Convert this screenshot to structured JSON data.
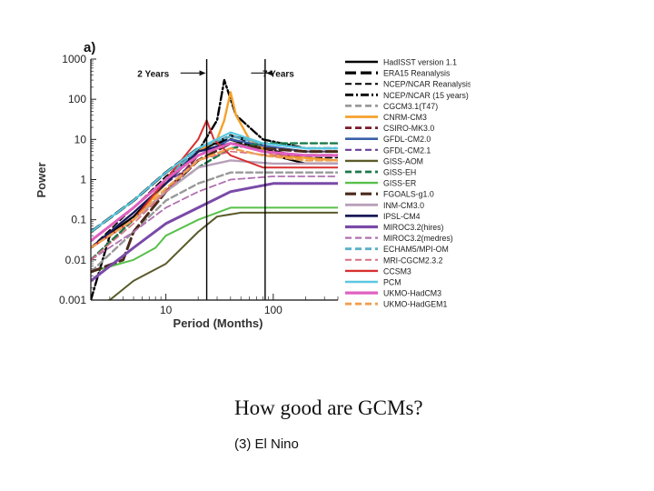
{
  "slide": {
    "title": "How good are GCMs?",
    "subtitle": "(3) El Nino"
  },
  "chart_data": {
    "type": "line",
    "panel_label": "a)",
    "xlabel": "Period (Months)",
    "ylabel": "Power",
    "x_scale": "log",
    "y_scale": "log",
    "xlim": [
      2,
      400
    ],
    "ylim": [
      0.001,
      1000
    ],
    "x_ticks": [
      10,
      100
    ],
    "y_ticks": [
      1000,
      100,
      10,
      1,
      0.1,
      0.01,
      0.001
    ],
    "y_tick_labels": [
      "1000",
      "100",
      "10",
      "1",
      "0.1",
      "0.01",
      "0.001"
    ],
    "x_tick_labels": [
      "10",
      "100"
    ],
    "grid": false,
    "legend_position": "right",
    "vlines": [
      24,
      84
    ],
    "annotations": [
      {
        "text": "2 Years",
        "x_from": 3.5,
        "x_to": 24,
        "y": 450,
        "direction": "right"
      },
      {
        "text": "7 Years",
        "x_from": 84,
        "x_to": 200,
        "y": 450,
        "direction": "left"
      }
    ],
    "series": [
      {
        "name": "HadISST version 1.1",
        "color": "#000000",
        "dash": "solid",
        "width": 2.2,
        "points": [
          [
            2,
            0.02
          ],
          [
            5,
            0.12
          ],
          [
            10,
            0.8
          ],
          [
            20,
            5
          ],
          [
            40,
            12
          ],
          [
            60,
            10
          ],
          [
            100,
            4
          ],
          [
            200,
            2.5
          ],
          [
            400,
            2.5
          ]
        ]
      },
      {
        "name": "ERA15 Reanalysis",
        "color": "#000000",
        "dash": "longdash",
        "width": 3,
        "points": [
          [
            2,
            0.05
          ],
          [
            5,
            0.3
          ],
          [
            10,
            1.5
          ],
          [
            20,
            6
          ],
          [
            40,
            10
          ],
          [
            80,
            6
          ],
          [
            150,
            4
          ],
          [
            400,
            4
          ]
        ]
      },
      {
        "name": "NCEP/NCAR Reanalysis",
        "color": "#000000",
        "dash": "dash",
        "width": 1.6,
        "points": [
          [
            2,
            0.02
          ],
          [
            5,
            0.2
          ],
          [
            10,
            1.2
          ],
          [
            20,
            5
          ],
          [
            40,
            13
          ],
          [
            80,
            6
          ],
          [
            150,
            3.5
          ],
          [
            400,
            3.5
          ]
        ]
      },
      {
        "name": "NCEP/NCAR (15 years)",
        "color": "#000000",
        "dash": "dashdot",
        "width": 2.4,
        "points": [
          [
            2,
            0.001
          ],
          [
            3,
            0.04
          ],
          [
            5,
            0.1
          ],
          [
            10,
            1
          ],
          [
            20,
            5
          ],
          [
            30,
            30
          ],
          [
            35,
            300
          ],
          [
            45,
            40
          ],
          [
            80,
            10
          ],
          [
            200,
            6
          ],
          [
            400,
            6
          ]
        ]
      },
      {
        "name": "CGCM3.1(T47)",
        "color": "#999999",
        "dash": "dash",
        "width": 2.4,
        "points": [
          [
            2,
            0.005
          ],
          [
            5,
            0.05
          ],
          [
            10,
            0.3
          ],
          [
            20,
            0.8
          ],
          [
            40,
            1.5
          ],
          [
            100,
            1.5
          ],
          [
            400,
            1.5
          ]
        ]
      },
      {
        "name": "CNRM-CM3",
        "color": "#f4a12c",
        "dash": "solid",
        "width": 2.4,
        "points": [
          [
            2,
            0.02
          ],
          [
            5,
            0.1
          ],
          [
            10,
            0.8
          ],
          [
            20,
            5
          ],
          [
            30,
            10
          ],
          [
            35,
            30
          ],
          [
            40,
            150
          ],
          [
            45,
            40
          ],
          [
            60,
            10
          ],
          [
            100,
            4
          ],
          [
            400,
            3
          ]
        ]
      },
      {
        "name": "CSIRO-MK3.0",
        "color": "#7a1a2a",
        "dash": "dash",
        "width": 2.4,
        "points": [
          [
            2,
            0.01
          ],
          [
            5,
            0.1
          ],
          [
            10,
            0.5
          ],
          [
            20,
            4
          ],
          [
            40,
            8
          ],
          [
            80,
            5
          ],
          [
            150,
            4
          ],
          [
            400,
            4
          ]
        ]
      },
      {
        "name": "GFDL-CM2.0",
        "color": "#3a5fa8",
        "dash": "solid",
        "width": 2.2,
        "points": [
          [
            2,
            0.03
          ],
          [
            5,
            0.2
          ],
          [
            10,
            1
          ],
          [
            20,
            4
          ],
          [
            40,
            10
          ],
          [
            80,
            7
          ],
          [
            200,
            5
          ],
          [
            400,
            5
          ]
        ]
      },
      {
        "name": "GFDL-CM2.1",
        "color": "#6a3d9a",
        "dash": "dash",
        "width": 1.8,
        "points": [
          [
            2,
            0.02
          ],
          [
            5,
            0.15
          ],
          [
            10,
            0.8
          ],
          [
            20,
            3
          ],
          [
            40,
            6
          ],
          [
            80,
            4
          ],
          [
            200,
            3
          ],
          [
            400,
            3
          ]
        ]
      },
      {
        "name": "GISS-AOM",
        "color": "#5a5a2a",
        "dash": "solid",
        "width": 2,
        "points": [
          [
            2,
            0.0008
          ],
          [
            3,
            0.001
          ],
          [
            5,
            0.003
          ],
          [
            10,
            0.008
          ],
          [
            20,
            0.05
          ],
          [
            30,
            0.12
          ],
          [
            50,
            0.15
          ],
          [
            100,
            0.15
          ],
          [
            400,
            0.15
          ]
        ]
      },
      {
        "name": "GISS-EH",
        "color": "#1a7a4a",
        "dash": "dash",
        "width": 2.4,
        "points": [
          [
            2,
            0.01
          ],
          [
            5,
            0.1
          ],
          [
            10,
            0.5
          ],
          [
            20,
            2
          ],
          [
            40,
            6
          ],
          [
            80,
            8
          ],
          [
            150,
            8
          ],
          [
            400,
            8
          ]
        ]
      },
      {
        "name": "GISS-ER",
        "color": "#58c04a",
        "dash": "solid",
        "width": 2,
        "points": [
          [
            2,
            0.005
          ],
          [
            5,
            0.01
          ],
          [
            8,
            0.02
          ],
          [
            10,
            0.04
          ],
          [
            20,
            0.1
          ],
          [
            40,
            0.2
          ],
          [
            100,
            0.2
          ],
          [
            400,
            0.2
          ]
        ]
      },
      {
        "name": "FGOALS-g1.0",
        "color": "#4a2a1a",
        "dash": "longdash",
        "width": 3,
        "points": [
          [
            2,
            0.005
          ],
          [
            4,
            0.01
          ],
          [
            5,
            0.05
          ],
          [
            10,
            0.5
          ],
          [
            20,
            3
          ],
          [
            40,
            8
          ],
          [
            80,
            6
          ],
          [
            200,
            5
          ],
          [
            400,
            5
          ]
        ]
      },
      {
        "name": "INM-CM3.0",
        "color": "#b8a0b8",
        "dash": "solid",
        "width": 2.4,
        "points": [
          [
            2,
            0.02
          ],
          [
            5,
            0.1
          ],
          [
            10,
            0.5
          ],
          [
            20,
            2
          ],
          [
            40,
            3
          ],
          [
            100,
            2.5
          ],
          [
            400,
            2.5
          ]
        ]
      },
      {
        "name": "IPSL-CM4",
        "color": "#1a1a5a",
        "dash": "solid",
        "width": 2.4,
        "points": [
          [
            2,
            0.02
          ],
          [
            5,
            0.15
          ],
          [
            10,
            0.8
          ],
          [
            20,
            5
          ],
          [
            40,
            8
          ],
          [
            80,
            5
          ],
          [
            200,
            4
          ],
          [
            400,
            4
          ]
        ]
      },
      {
        "name": "MIROC3.2(hires)",
        "color": "#7a4aa8",
        "dash": "solid",
        "width": 3,
        "points": [
          [
            2,
            0.003
          ],
          [
            5,
            0.02
          ],
          [
            10,
            0.08
          ],
          [
            20,
            0.2
          ],
          [
            40,
            0.5
          ],
          [
            100,
            0.8
          ],
          [
            400,
            0.8
          ]
        ]
      },
      {
        "name": "MIROC3.2(medres)",
        "color": "#b070b0",
        "dash": "dash",
        "width": 1.8,
        "points": [
          [
            2,
            0.01
          ],
          [
            5,
            0.05
          ],
          [
            10,
            0.2
          ],
          [
            20,
            0.5
          ],
          [
            40,
            1
          ],
          [
            100,
            1.2
          ],
          [
            400,
            1.2
          ]
        ]
      },
      {
        "name": "ECHAM5/MPI-OM",
        "color": "#5ab0c8",
        "dash": "dash",
        "width": 2.4,
        "points": [
          [
            2,
            0.03
          ],
          [
            5,
            0.2
          ],
          [
            10,
            1
          ],
          [
            20,
            6
          ],
          [
            40,
            12
          ],
          [
            80,
            8
          ],
          [
            200,
            6
          ],
          [
            400,
            6
          ]
        ]
      },
      {
        "name": "MRI-CGCM2.3.2",
        "color": "#d87080",
        "dash": "dash",
        "width": 1.6,
        "points": [
          [
            2,
            0.01
          ],
          [
            5,
            0.08
          ],
          [
            10,
            0.5
          ],
          [
            20,
            3
          ],
          [
            40,
            5
          ],
          [
            100,
            4
          ],
          [
            400,
            4
          ]
        ]
      },
      {
        "name": "CCSM3",
        "color": "#d83030",
        "dash": "solid",
        "width": 2,
        "points": [
          [
            2,
            0.02
          ],
          [
            5,
            0.1
          ],
          [
            10,
            1
          ],
          [
            20,
            10
          ],
          [
            24,
            30
          ],
          [
            28,
            10
          ],
          [
            40,
            4
          ],
          [
            80,
            2
          ],
          [
            200,
            2
          ],
          [
            400,
            2
          ]
        ]
      },
      {
        "name": "PCM",
        "color": "#5ac8e0",
        "dash": "solid",
        "width": 2.2,
        "points": [
          [
            2,
            0.05
          ],
          [
            5,
            0.3
          ],
          [
            10,
            1.5
          ],
          [
            20,
            6
          ],
          [
            40,
            15
          ],
          [
            80,
            8
          ],
          [
            200,
            6
          ],
          [
            400,
            6
          ]
        ]
      },
      {
        "name": "UKMO-HadCM3",
        "color": "#e060c0",
        "dash": "solid",
        "width": 3,
        "points": [
          [
            2,
            0.03
          ],
          [
            5,
            0.2
          ],
          [
            10,
            1
          ],
          [
            20,
            4
          ],
          [
            40,
            8
          ],
          [
            80,
            5
          ],
          [
            200,
            4
          ],
          [
            400,
            4
          ]
        ]
      },
      {
        "name": "UKMO-HadGEM1",
        "color": "#f0a050",
        "dash": "dash",
        "width": 2.4,
        "points": [
          [
            2,
            0.02
          ],
          [
            5,
            0.1
          ],
          [
            10,
            0.6
          ],
          [
            20,
            3
          ],
          [
            40,
            6
          ],
          [
            80,
            4
          ],
          [
            200,
            3
          ],
          [
            400,
            3
          ]
        ]
      }
    ]
  }
}
